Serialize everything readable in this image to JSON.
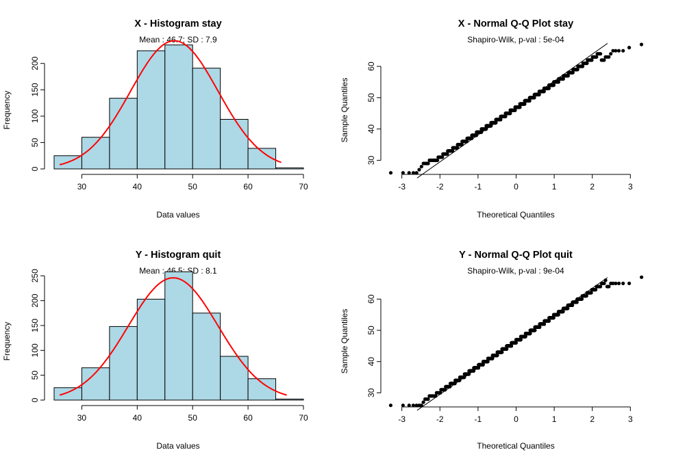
{
  "colors": {
    "bar_fill": "#add8e6",
    "curve": "#ff0000",
    "points": "#000000",
    "line": "#000000"
  },
  "chart_data": [
    {
      "type": "bar",
      "panel": "top-left",
      "title": "X - Histogram stay",
      "subtitle": "Mean : 46.7; SD : 7.9",
      "xlabel": "Data values",
      "ylabel": "Frequency",
      "bins": [
        [
          25,
          30
        ],
        [
          30,
          35
        ],
        [
          35,
          40
        ],
        [
          40,
          45
        ],
        [
          45,
          50
        ],
        [
          50,
          55
        ],
        [
          55,
          60
        ],
        [
          60,
          65
        ],
        [
          65,
          70
        ]
      ],
      "values": [
        25,
        60,
        134,
        224,
        235,
        191,
        94,
        39,
        2
      ],
      "mean": 46.7,
      "sd": 7.9,
      "curve_peak": 243,
      "curve_range": [
        26,
        66
      ],
      "xlim": [
        25,
        70
      ],
      "ylim": [
        0,
        245
      ],
      "xticks": [
        "30",
        "40",
        "50",
        "60",
        "70"
      ],
      "yticks": [
        "0",
        "50",
        "100",
        "150",
        "200"
      ]
    },
    {
      "type": "scatter",
      "panel": "top-right",
      "title": "X - Normal Q-Q Plot stay",
      "subtitle": "Shapiro-Wilk, p-val : 5e-04",
      "xlabel": "Theoretical Quantiles",
      "ylabel": "Sample Quantiles",
      "n": 1004,
      "mean": 46.7,
      "sd": 7.9,
      "lowest_points": [
        26,
        26,
        26,
        26,
        26,
        27,
        28,
        29,
        29,
        29,
        29,
        30,
        30,
        30,
        30
      ],
      "highest_points": [
        62,
        62,
        62,
        63,
        63,
        63,
        64,
        65,
        65,
        65,
        65,
        66,
        67
      ],
      "ref_line": {
        "slope": 8.6,
        "intercept": 46.7
      },
      "xlim": [
        -3.3,
        3.3
      ],
      "ylim": [
        25.5,
        67
      ],
      "xticks": [
        "-3",
        "-2",
        "-1",
        "0",
        "1",
        "2",
        "3"
      ],
      "yticks": [
        "30",
        "40",
        "50",
        "60"
      ]
    },
    {
      "type": "bar",
      "panel": "bottom-left",
      "title": "Y - Histogram quit",
      "subtitle": "Mean : 46.5; SD : 8.1",
      "xlabel": "Data values",
      "ylabel": "Frequency",
      "bins": [
        [
          25,
          30
        ],
        [
          30,
          35
        ],
        [
          35,
          40
        ],
        [
          40,
          45
        ],
        [
          45,
          50
        ],
        [
          50,
          55
        ],
        [
          55,
          60
        ],
        [
          60,
          65
        ],
        [
          65,
          70
        ]
      ],
      "values": [
        25,
        65,
        148,
        203,
        258,
        175,
        88,
        43,
        2
      ],
      "mean": 46.5,
      "sd": 8.1,
      "curve_peak": 246,
      "curve_range": [
        26,
        67
      ],
      "xlim": [
        25,
        70
      ],
      "ylim": [
        0,
        260
      ],
      "xticks": [
        "30",
        "40",
        "50",
        "60",
        "70"
      ],
      "yticks": [
        "0",
        "50",
        "100",
        "150",
        "200",
        "250"
      ]
    },
    {
      "type": "scatter",
      "panel": "bottom-right",
      "title": "Y - Normal Q-Q Plot quit",
      "subtitle": "Shapiro-Wilk, p-val : 9e-04",
      "xlabel": "Theoretical Quantiles",
      "ylabel": "Sample Quantiles",
      "n": 1007,
      "mean": 46.5,
      "sd": 8.1,
      "lowest_points": [
        26,
        26,
        26,
        26,
        26,
        26,
        26,
        27,
        28,
        28,
        28,
        29,
        29
      ],
      "highest_points": [
        64,
        64,
        65,
        65,
        65,
        65,
        65,
        65,
        67
      ],
      "ref_line": {
        "slope": 8.5,
        "intercept": 46.5
      },
      "xlim": [
        -3.3,
        3.3
      ],
      "ylim": [
        25.5,
        67.5
      ],
      "xticks": [
        "-3",
        "-2",
        "-1",
        "0",
        "1",
        "2",
        "3"
      ],
      "yticks": [
        "30",
        "40",
        "50",
        "60"
      ]
    }
  ]
}
